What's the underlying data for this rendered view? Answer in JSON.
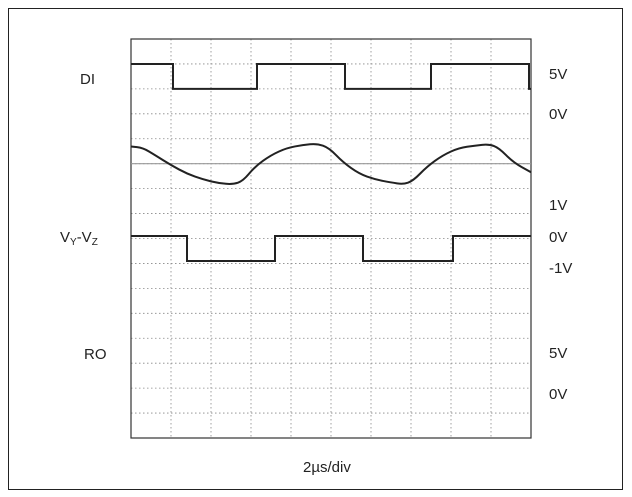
{
  "chart_data": {
    "type": "line",
    "xlabel": "2µs/div",
    "grid": true,
    "divisions": {
      "x": 10,
      "y": 16
    },
    "traces": [
      {
        "name": "DI",
        "levels": [
          "5V",
          "0V"
        ],
        "high_v": 5,
        "low_v": 0,
        "start_level": "high",
        "transitions_div": [
          1.05,
          3.15,
          5.35,
          7.5,
          9.95
        ]
      },
      {
        "name": "VY-VZ",
        "name_main": "V",
        "name_sub1": "Y",
        "name_mid": "-V",
        "name_sub2": "Z",
        "levels": [
          "1V",
          "0V",
          "-1V"
        ],
        "points": [
          [
            0,
            0.6
          ],
          [
            0.3,
            0.55
          ],
          [
            0.6,
            0.3
          ],
          [
            1.0,
            -0.05
          ],
          [
            1.4,
            -0.35
          ],
          [
            1.8,
            -0.55
          ],
          [
            2.2,
            -0.68
          ],
          [
            2.55,
            -0.72
          ],
          [
            2.8,
            -0.6
          ],
          [
            3.1,
            -0.1
          ],
          [
            3.5,
            0.3
          ],
          [
            3.9,
            0.55
          ],
          [
            4.3,
            0.65
          ],
          [
            4.65,
            0.7
          ],
          [
            4.95,
            0.55
          ],
          [
            5.3,
            0.05
          ],
          [
            5.7,
            -0.35
          ],
          [
            6.1,
            -0.55
          ],
          [
            6.5,
            -0.65
          ],
          [
            6.8,
            -0.72
          ],
          [
            7.05,
            -0.6
          ],
          [
            7.4,
            -0.1
          ],
          [
            7.8,
            0.3
          ],
          [
            8.2,
            0.55
          ],
          [
            8.6,
            0.63
          ],
          [
            8.95,
            0.68
          ],
          [
            9.2,
            0.55
          ],
          [
            9.55,
            0.05
          ],
          [
            10.0,
            -0.3
          ]
        ]
      },
      {
        "name": "RO",
        "levels": [
          "5V",
          "0V"
        ],
        "high_v": 5,
        "low_v": 0,
        "start_level": "high",
        "transitions_div": [
          1.4,
          3.6,
          5.8,
          8.05
        ]
      }
    ]
  }
}
